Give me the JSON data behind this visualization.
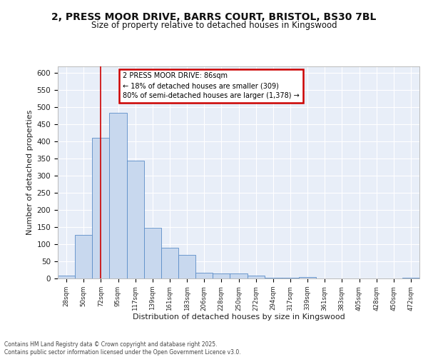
{
  "title_line1": "2, PRESS MOOR DRIVE, BARRS COURT, BRISTOL, BS30 7BL",
  "title_line2": "Size of property relative to detached houses in Kingswood",
  "xlabel": "Distribution of detached houses by size in Kingswood",
  "ylabel": "Number of detached properties",
  "bar_labels": [
    "28sqm",
    "50sqm",
    "72sqm",
    "95sqm",
    "117sqm",
    "139sqm",
    "161sqm",
    "183sqm",
    "206sqm",
    "228sqm",
    "250sqm",
    "272sqm",
    "294sqm",
    "317sqm",
    "339sqm",
    "361sqm",
    "383sqm",
    "405sqm",
    "428sqm",
    "450sqm",
    "472sqm"
  ],
  "bar_values": [
    8,
    128,
    410,
    483,
    343,
    148,
    90,
    68,
    17,
    14,
    15,
    8,
    3,
    2,
    5,
    1,
    0,
    0,
    0,
    0,
    3
  ],
  "bar_color": "#c8d8ee",
  "bar_edge_color": "#5b8dc8",
  "plot_bg_color": "#e8eef8",
  "fig_bg_color": "#ffffff",
  "grid_color": "#ffffff",
  "vline_x": 2,
  "vline_color": "#cc0000",
  "annotation_text": "2 PRESS MOOR DRIVE: 86sqm\n← 18% of detached houses are smaller (309)\n80% of semi-detached houses are larger (1,378) →",
  "annotation_box_facecolor": "#ffffff",
  "annotation_box_edgecolor": "#cc0000",
  "footer_text": "Contains HM Land Registry data © Crown copyright and database right 2025.\nContains public sector information licensed under the Open Government Licence v3.0.",
  "ylim": [
    0,
    620
  ],
  "yticks": [
    0,
    50,
    100,
    150,
    200,
    250,
    300,
    350,
    400,
    450,
    500,
    550,
    600
  ]
}
